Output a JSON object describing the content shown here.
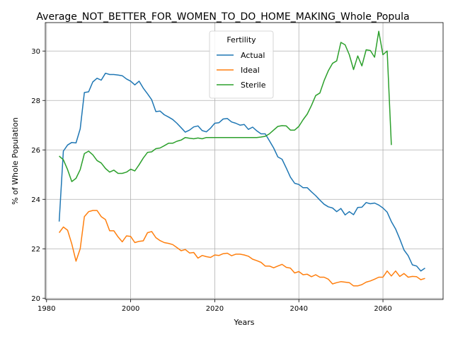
{
  "chart_data": {
    "type": "line",
    "title": "Average_NOT_BETTER_FOR_WOMEN_TO_DO_HOME_MAKING_Whole_Popula",
    "xlabel": "Years",
    "ylabel": "% of Whole Population",
    "xlim": [
      1979.7,
      2074.3
    ],
    "ylim": [
      19.95,
      31.15
    ],
    "xticks": [
      1980,
      2000,
      2020,
      2040,
      2060
    ],
    "yticks": [
      20,
      22,
      24,
      26,
      28,
      30
    ],
    "grid": true,
    "legend": {
      "title": "Fertility",
      "placement": "upper center"
    },
    "series": [
      {
        "name": "Actual",
        "color": "#1f77b4",
        "x": [
          1983,
          1984,
          1985,
          1986,
          1987,
          1988,
          1989,
          1990,
          1991,
          1992,
          1993,
          1994,
          1995,
          1996,
          1997,
          1998,
          1999,
          2000,
          2001,
          2002,
          2003,
          2004,
          2005,
          2006,
          2007,
          2008,
          2009,
          2010,
          2011,
          2012,
          2013,
          2014,
          2015,
          2016,
          2017,
          2018,
          2019,
          2020,
          2021,
          2022,
          2023,
          2024,
          2025,
          2026,
          2027,
          2028,
          2029,
          2030,
          2031,
          2032,
          2033,
          2034,
          2035,
          2036,
          2037,
          2038,
          2039,
          2040,
          2041,
          2042,
          2043,
          2044,
          2045,
          2046,
          2047,
          2048,
          2049,
          2050,
          2051,
          2052,
          2053,
          2054,
          2055,
          2056,
          2057,
          2058,
          2059,
          2060,
          2061,
          2062,
          2063,
          2064,
          2065,
          2066,
          2067,
          2068,
          2069,
          2070
        ],
        "y": [
          23.1,
          25.95,
          26.2,
          26.3,
          26.28,
          26.85,
          28.32,
          28.35,
          28.75,
          28.9,
          28.82,
          29.1,
          29.05,
          29.05,
          29.03,
          29.0,
          28.87,
          28.78,
          28.63,
          28.78,
          28.5,
          28.27,
          28.03,
          27.55,
          27.57,
          27.42,
          27.33,
          27.23,
          27.08,
          26.9,
          26.72,
          26.8,
          26.93,
          26.97,
          26.78,
          26.73,
          26.88,
          27.08,
          27.1,
          27.25,
          27.27,
          27.13,
          27.08,
          27.0,
          27.03,
          26.83,
          26.92,
          26.77,
          26.65,
          26.65,
          26.37,
          26.08,
          25.72,
          25.62,
          25.27,
          24.9,
          24.65,
          24.6,
          24.47,
          24.47,
          24.3,
          24.15,
          23.97,
          23.8,
          23.7,
          23.65,
          23.5,
          23.63,
          23.37,
          23.5,
          23.38,
          23.67,
          23.68,
          23.87,
          23.82,
          23.85,
          23.77,
          23.65,
          23.48,
          23.1,
          22.8,
          22.4,
          21.95,
          21.72,
          21.35,
          21.3,
          21.1,
          21.22
        ]
      },
      {
        "name": "Ideal",
        "color": "#ff7f0e",
        "x": [
          1983,
          1984,
          1985,
          1986,
          1987,
          1988,
          1989,
          1990,
          1991,
          1992,
          1993,
          1994,
          1995,
          1996,
          1997,
          1998,
          1999,
          2000,
          2001,
          2002,
          2003,
          2004,
          2005,
          2006,
          2007,
          2008,
          2009,
          2010,
          2011,
          2012,
          2013,
          2014,
          2015,
          2016,
          2017,
          2018,
          2019,
          2020,
          2021,
          2022,
          2023,
          2024,
          2025,
          2026,
          2027,
          2028,
          2029,
          2030,
          2031,
          2032,
          2033,
          2034,
          2035,
          2036,
          2037,
          2038,
          2039,
          2040,
          2041,
          2042,
          2043,
          2044,
          2045,
          2046,
          2047,
          2048,
          2049,
          2050,
          2051,
          2052,
          2053,
          2054,
          2055,
          2056,
          2057,
          2058,
          2059,
          2060,
          2061,
          2062,
          2063,
          2064,
          2065,
          2066,
          2067,
          2068,
          2069,
          2070
        ],
        "y": [
          22.65,
          22.88,
          22.75,
          22.2,
          21.5,
          22.0,
          23.3,
          23.5,
          23.55,
          23.55,
          23.3,
          23.18,
          22.73,
          22.73,
          22.48,
          22.28,
          22.52,
          22.5,
          22.25,
          22.3,
          22.32,
          22.65,
          22.7,
          22.45,
          22.33,
          22.25,
          22.22,
          22.17,
          22.05,
          21.92,
          21.97,
          21.83,
          21.85,
          21.62,
          21.73,
          21.68,
          21.65,
          21.75,
          21.73,
          21.8,
          21.82,
          21.72,
          21.78,
          21.78,
          21.75,
          21.7,
          21.58,
          21.52,
          21.45,
          21.3,
          21.3,
          21.23,
          21.3,
          21.37,
          21.25,
          21.22,
          21.02,
          21.08,
          20.95,
          20.97,
          20.87,
          20.95,
          20.85,
          20.85,
          20.77,
          20.58,
          20.63,
          20.67,
          20.65,
          20.63,
          20.5,
          20.5,
          20.55,
          20.65,
          20.7,
          20.77,
          20.85,
          20.85,
          21.1,
          20.9,
          21.1,
          20.88,
          21.0,
          20.85,
          20.88,
          20.87,
          20.75,
          20.8
        ]
      },
      {
        "name": "Sterile",
        "color": "#2ca02c",
        "x": [
          1983,
          1984,
          1985,
          1986,
          1987,
          1988,
          1989,
          1990,
          1991,
          1992,
          1993,
          1994,
          1995,
          1996,
          1997,
          1998,
          1999,
          2000,
          2001,
          2002,
          2003,
          2004,
          2005,
          2006,
          2007,
          2008,
          2009,
          2010,
          2011,
          2012,
          2013,
          2014,
          2015,
          2016,
          2017,
          2018,
          2019,
          2020,
          2021,
          2022,
          2023,
          2024,
          2025,
          2026,
          2027,
          2028,
          2029,
          2030,
          2031,
          2032,
          2033,
          2034,
          2035,
          2036,
          2037,
          2038,
          2039,
          2040,
          2041,
          2042,
          2043,
          2044,
          2045,
          2046,
          2047,
          2048,
          2049,
          2050,
          2051,
          2052,
          2053,
          2054,
          2055,
          2056,
          2057,
          2058,
          2059,
          2060,
          2061,
          2062
        ],
        "y": [
          25.75,
          25.6,
          25.2,
          24.72,
          24.85,
          25.2,
          25.85,
          25.95,
          25.8,
          25.57,
          25.47,
          25.25,
          25.1,
          25.18,
          25.05,
          25.05,
          25.1,
          25.22,
          25.15,
          25.4,
          25.67,
          25.9,
          25.92,
          26.05,
          26.08,
          26.17,
          26.27,
          26.27,
          26.35,
          26.4,
          26.5,
          26.47,
          26.45,
          26.48,
          26.45,
          26.5,
          26.5,
          26.5,
          26.5,
          26.5,
          26.5,
          26.5,
          26.5,
          26.5,
          26.5,
          26.5,
          26.5,
          26.5,
          26.52,
          26.55,
          26.65,
          26.8,
          26.95,
          26.98,
          26.97,
          26.8,
          26.8,
          26.95,
          27.22,
          27.45,
          27.8,
          28.2,
          28.3,
          28.8,
          29.2,
          29.5,
          29.6,
          30.35,
          30.25,
          29.85,
          29.25,
          29.8,
          29.4,
          30.05,
          30.02,
          29.75,
          30.8,
          29.85,
          30.0,
          26.2
        ]
      }
    ]
  }
}
